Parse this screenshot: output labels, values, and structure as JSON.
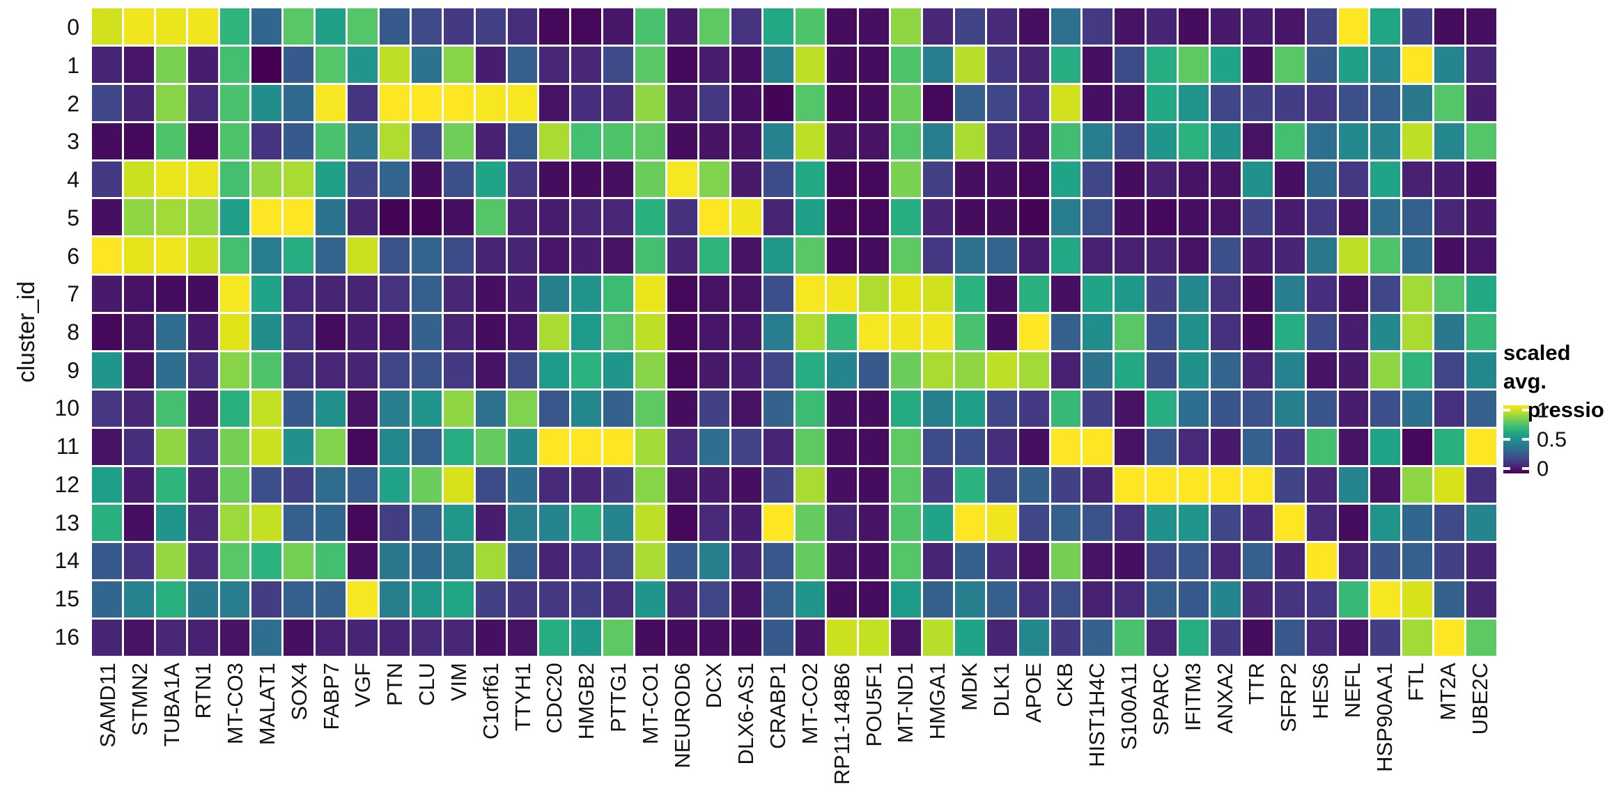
{
  "chart_data": {
    "type": "heatmap",
    "title": "",
    "y_axis_title": "cluster_id",
    "y_categories": [
      "0",
      "1",
      "2",
      "3",
      "4",
      "5",
      "6",
      "7",
      "8",
      "9",
      "10",
      "11",
      "12",
      "13",
      "14",
      "15",
      "16"
    ],
    "x_categories": [
      "SAMD11",
      "STMN2",
      "TUBA1A",
      "RTN1",
      "MT-CO3",
      "MALAT1",
      "SOX4",
      "FABP7",
      "VGF",
      "PTN",
      "CLU",
      "VIM",
      "C1orf61",
      "TTYH1",
      "CDC20",
      "HMGB2",
      "PTTG1",
      "MT-CO1",
      "NEUROD6",
      "DCX",
      "DLX6-AS1",
      "CRABP1",
      "MT-CO2",
      "RP11-148B6",
      "POU5F1",
      "MT-ND1",
      "HMGA1",
      "MDK",
      "DLK1",
      "APOE",
      "CKB",
      "HIST1H4C",
      "S100A11",
      "SPARC",
      "IFITM3",
      "ANXA2",
      "TTR",
      "SFRP2",
      "HES6",
      "NEFL",
      "HSP90AA1",
      "FTL",
      "MT2A",
      "UBE2C"
    ],
    "legend": {
      "title_lines": [
        "scaled avg.",
        "expression"
      ],
      "tick_labels": [
        "1",
        "0.5",
        "0"
      ],
      "tick_positions": [
        0.07,
        0.5,
        0.93
      ]
    },
    "colormap": "viridis",
    "value_range": [
      0,
      1
    ],
    "grid": true,
    "colormap_stops": [
      [
        0.0,
        "#440154"
      ],
      [
        0.05,
        "#471365"
      ],
      [
        0.1,
        "#482475"
      ],
      [
        0.15,
        "#463480"
      ],
      [
        0.2,
        "#414487"
      ],
      [
        0.25,
        "#3b528b"
      ],
      [
        0.3,
        "#355f8d"
      ],
      [
        0.35,
        "#2f6c8e"
      ],
      [
        0.4,
        "#2a788e"
      ],
      [
        0.45,
        "#25848e"
      ],
      [
        0.5,
        "#21918c"
      ],
      [
        0.55,
        "#1e9c89"
      ],
      [
        0.6,
        "#22a884"
      ],
      [
        0.65,
        "#2fb47c"
      ],
      [
        0.7,
        "#44bf70"
      ],
      [
        0.75,
        "#5ec962"
      ],
      [
        0.8,
        "#7ad151"
      ],
      [
        0.85,
        "#9bd93c"
      ],
      [
        0.9,
        "#bddf26"
      ],
      [
        0.95,
        "#dfe318"
      ],
      [
        1.0,
        "#fde725"
      ]
    ],
    "values": [
      [
        0.93,
        0.98,
        0.97,
        0.98,
        0.65,
        0.33,
        0.74,
        0.57,
        0.73,
        0.28,
        0.22,
        0.17,
        0.19,
        0.13,
        0.02,
        0.02,
        0.06,
        0.71,
        0.07,
        0.75,
        0.15,
        0.6,
        0.72,
        0.03,
        0.04,
        0.83,
        0.11,
        0.2,
        0.12,
        0.04,
        0.37,
        0.17,
        0.05,
        0.1,
        0.03,
        0.07,
        0.08,
        0.06,
        0.2,
        1.0,
        0.59,
        0.19,
        0.03,
        0.04
      ],
      [
        0.1,
        0.06,
        0.8,
        0.08,
        0.7,
        0.0,
        0.28,
        0.73,
        0.52,
        0.9,
        0.38,
        0.82,
        0.08,
        0.3,
        0.11,
        0.11,
        0.22,
        0.74,
        0.02,
        0.08,
        0.04,
        0.44,
        0.9,
        0.03,
        0.03,
        0.72,
        0.42,
        0.89,
        0.16,
        0.1,
        0.62,
        0.04,
        0.23,
        0.62,
        0.75,
        0.58,
        0.04,
        0.74,
        0.28,
        0.57,
        0.44,
        1.0,
        0.45,
        0.11
      ],
      [
        0.21,
        0.1,
        0.82,
        0.12,
        0.71,
        0.49,
        0.34,
        0.99,
        0.15,
        1.0,
        1.0,
        1.0,
        0.99,
        0.99,
        0.05,
        0.13,
        0.13,
        0.83,
        0.05,
        0.16,
        0.04,
        0.01,
        0.73,
        0.02,
        0.03,
        0.77,
        0.02,
        0.3,
        0.21,
        0.12,
        0.93,
        0.04,
        0.05,
        0.6,
        0.51,
        0.21,
        0.19,
        0.18,
        0.16,
        0.24,
        0.3,
        0.4,
        0.73,
        0.08
      ],
      [
        0.03,
        0.02,
        0.72,
        0.02,
        0.72,
        0.15,
        0.28,
        0.71,
        0.37,
        0.88,
        0.22,
        0.78,
        0.09,
        0.29,
        0.87,
        0.7,
        0.72,
        0.75,
        0.03,
        0.05,
        0.05,
        0.44,
        0.9,
        0.05,
        0.05,
        0.73,
        0.42,
        0.87,
        0.15,
        0.06,
        0.69,
        0.42,
        0.23,
        0.52,
        0.64,
        0.5,
        0.05,
        0.7,
        0.36,
        0.47,
        0.45,
        0.9,
        0.46,
        0.73
      ],
      [
        0.17,
        0.92,
        0.97,
        0.97,
        0.7,
        0.84,
        0.87,
        0.57,
        0.2,
        0.32,
        0.03,
        0.24,
        0.58,
        0.16,
        0.03,
        0.03,
        0.04,
        0.77,
        0.99,
        0.81,
        0.07,
        0.23,
        0.6,
        0.02,
        0.02,
        0.8,
        0.19,
        0.04,
        0.04,
        0.02,
        0.58,
        0.21,
        0.03,
        0.09,
        0.05,
        0.05,
        0.5,
        0.04,
        0.34,
        0.16,
        0.58,
        0.09,
        0.08,
        0.04
      ],
      [
        0.04,
        0.83,
        0.86,
        0.84,
        0.56,
        1.0,
        1.0,
        0.38,
        0.1,
        0.01,
        0.01,
        0.04,
        0.73,
        0.09,
        0.08,
        0.11,
        0.11,
        0.63,
        0.14,
        1.0,
        0.98,
        0.1,
        0.56,
        0.02,
        0.02,
        0.62,
        0.1,
        0.03,
        0.03,
        0.01,
        0.42,
        0.24,
        0.04,
        0.02,
        0.04,
        0.05,
        0.2,
        0.08,
        0.17,
        0.05,
        0.35,
        0.3,
        0.11,
        0.07
      ],
      [
        1.0,
        0.96,
        0.98,
        0.92,
        0.7,
        0.42,
        0.62,
        0.32,
        0.92,
        0.25,
        0.32,
        0.23,
        0.1,
        0.1,
        0.06,
        0.08,
        0.05,
        0.7,
        0.1,
        0.65,
        0.05,
        0.53,
        0.74,
        0.02,
        0.03,
        0.75,
        0.16,
        0.37,
        0.32,
        0.08,
        0.6,
        0.09,
        0.09,
        0.1,
        0.05,
        0.24,
        0.08,
        0.1,
        0.4,
        0.9,
        0.72,
        0.34,
        0.04,
        0.06
      ],
      [
        0.07,
        0.05,
        0.03,
        0.03,
        0.99,
        0.58,
        0.12,
        0.1,
        0.1,
        0.15,
        0.3,
        0.11,
        0.04,
        0.08,
        0.43,
        0.51,
        0.68,
        0.97,
        0.02,
        0.05,
        0.05,
        0.24,
        0.99,
        0.98,
        0.88,
        0.95,
        0.93,
        0.64,
        0.04,
        0.63,
        0.04,
        0.58,
        0.53,
        0.19,
        0.46,
        0.15,
        0.03,
        0.42,
        0.13,
        0.05,
        0.21,
        0.86,
        0.73,
        0.6
      ],
      [
        0.02,
        0.05,
        0.35,
        0.07,
        0.95,
        0.49,
        0.14,
        0.03,
        0.08,
        0.06,
        0.31,
        0.1,
        0.03,
        0.06,
        0.87,
        0.55,
        0.73,
        0.9,
        0.02,
        0.06,
        0.06,
        0.42,
        0.88,
        0.66,
        0.99,
        0.98,
        0.98,
        0.71,
        0.03,
        1.0,
        0.3,
        0.49,
        0.74,
        0.23,
        0.5,
        0.14,
        0.03,
        0.62,
        0.22,
        0.08,
        0.47,
        0.87,
        0.4,
        0.67
      ],
      [
        0.52,
        0.05,
        0.36,
        0.12,
        0.82,
        0.72,
        0.14,
        0.11,
        0.1,
        0.21,
        0.25,
        0.17,
        0.05,
        0.22,
        0.55,
        0.64,
        0.52,
        0.82,
        0.02,
        0.07,
        0.08,
        0.21,
        0.62,
        0.45,
        0.28,
        0.77,
        0.87,
        0.83,
        0.9,
        0.86,
        0.09,
        0.38,
        0.6,
        0.23,
        0.5,
        0.32,
        0.1,
        0.44,
        0.05,
        0.07,
        0.83,
        0.65,
        0.21,
        0.46
      ],
      [
        0.16,
        0.11,
        0.7,
        0.07,
        0.63,
        0.91,
        0.28,
        0.5,
        0.05,
        0.42,
        0.52,
        0.83,
        0.37,
        0.81,
        0.27,
        0.46,
        0.31,
        0.75,
        0.03,
        0.19,
        0.05,
        0.31,
        0.68,
        0.04,
        0.03,
        0.61,
        0.43,
        0.56,
        0.21,
        0.17,
        0.67,
        0.19,
        0.05,
        0.62,
        0.36,
        0.26,
        0.25,
        0.43,
        0.26,
        0.08,
        0.24,
        0.36,
        0.14,
        0.3
      ],
      [
        0.05,
        0.13,
        0.83,
        0.13,
        0.79,
        0.92,
        0.5,
        0.81,
        0.02,
        0.46,
        0.3,
        0.62,
        0.76,
        0.47,
        1.0,
        1.0,
        1.0,
        0.86,
        0.12,
        0.36,
        0.2,
        0.1,
        0.75,
        0.04,
        0.03,
        0.75,
        0.23,
        0.24,
        0.13,
        0.04,
        1.0,
        1.0,
        0.05,
        0.27,
        0.12,
        0.07,
        0.3,
        0.17,
        0.7,
        0.05,
        0.58,
        0.02,
        0.63,
        1.0
      ],
      [
        0.56,
        0.08,
        0.65,
        0.09,
        0.77,
        0.24,
        0.19,
        0.35,
        0.29,
        0.58,
        0.77,
        0.94,
        0.23,
        0.36,
        0.12,
        0.11,
        0.17,
        0.82,
        0.05,
        0.08,
        0.04,
        0.2,
        0.87,
        0.04,
        0.03,
        0.74,
        0.17,
        0.64,
        0.23,
        0.31,
        0.19,
        0.1,
        1.0,
        1.0,
        1.0,
        1.0,
        1.0,
        0.2,
        0.11,
        0.45,
        0.05,
        0.83,
        0.94,
        0.14
      ],
      [
        0.63,
        0.04,
        0.52,
        0.11,
        0.85,
        0.91,
        0.3,
        0.33,
        0.02,
        0.18,
        0.3,
        0.53,
        0.08,
        0.43,
        0.45,
        0.65,
        0.45,
        0.9,
        0.02,
        0.12,
        0.08,
        1.0,
        0.76,
        0.1,
        0.05,
        0.72,
        0.58,
        1.0,
        0.98,
        0.21,
        0.3,
        0.25,
        0.15,
        0.5,
        0.52,
        0.21,
        0.12,
        1.0,
        0.12,
        0.03,
        0.51,
        0.33,
        0.22,
        0.45
      ],
      [
        0.28,
        0.15,
        0.84,
        0.12,
        0.74,
        0.64,
        0.79,
        0.7,
        0.04,
        0.4,
        0.34,
        0.43,
        0.86,
        0.3,
        0.1,
        0.15,
        0.22,
        0.87,
        0.28,
        0.43,
        0.1,
        0.27,
        0.76,
        0.05,
        0.04,
        0.73,
        0.1,
        0.3,
        0.12,
        0.05,
        0.79,
        0.05,
        0.04,
        0.22,
        0.27,
        0.11,
        0.3,
        0.1,
        1.0,
        0.09,
        0.26,
        0.3,
        0.19,
        0.1
      ],
      [
        0.33,
        0.44,
        0.63,
        0.4,
        0.42,
        0.18,
        0.3,
        0.31,
        0.99,
        0.43,
        0.53,
        0.59,
        0.19,
        0.16,
        0.16,
        0.18,
        0.13,
        0.52,
        0.1,
        0.21,
        0.05,
        0.3,
        0.52,
        0.03,
        0.03,
        0.55,
        0.31,
        0.43,
        0.3,
        0.13,
        0.24,
        0.09,
        0.12,
        0.3,
        0.28,
        0.45,
        0.11,
        0.15,
        0.16,
        0.67,
        0.99,
        0.94,
        0.31,
        0.1
      ],
      [
        0.1,
        0.05,
        0.11,
        0.09,
        0.05,
        0.36,
        0.04,
        0.09,
        0.1,
        0.1,
        0.12,
        0.11,
        0.04,
        0.05,
        0.62,
        0.54,
        0.75,
        0.03,
        0.03,
        0.04,
        0.03,
        0.28,
        0.05,
        0.92,
        0.91,
        0.05,
        0.89,
        0.58,
        0.1,
        0.46,
        0.17,
        0.31,
        0.71,
        0.1,
        0.62,
        0.17,
        0.03,
        0.27,
        0.12,
        0.05,
        0.18,
        0.86,
        1.0,
        0.75
      ]
    ]
  }
}
